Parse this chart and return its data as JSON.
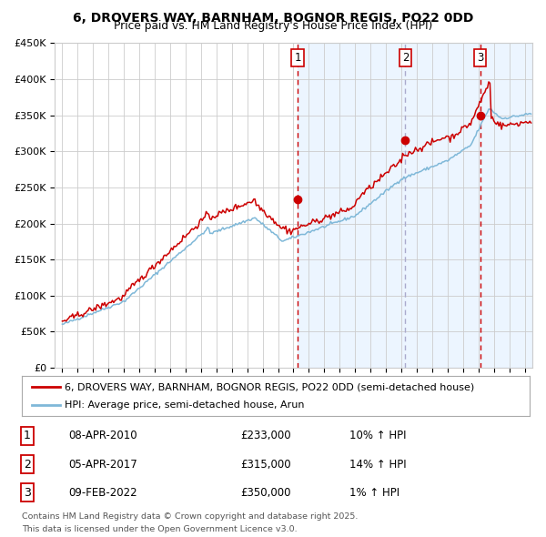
{
  "title": "6, DROVERS WAY, BARNHAM, BOGNOR REGIS, PO22 0DD",
  "subtitle": "Price paid vs. HM Land Registry's House Price Index (HPI)",
  "legend_line1": "6, DROVERS WAY, BARNHAM, BOGNOR REGIS, PO22 0DD (semi-detached house)",
  "legend_line2": "HPI: Average price, semi-detached house, Arun",
  "footer1": "Contains HM Land Registry data © Crown copyright and database right 2025.",
  "footer2": "This data is licensed under the Open Government Licence v3.0.",
  "sales": [
    {
      "num": 1,
      "date": "08-APR-2010",
      "price": 233000,
      "pct": "10%",
      "dir": "↑",
      "x": 2010.27
    },
    {
      "num": 2,
      "date": "05-APR-2017",
      "price": 315000,
      "pct": "14%",
      "dir": "↑",
      "x": 2017.26
    },
    {
      "num": 3,
      "date": "09-FEB-2022",
      "price": 350000,
      "pct": "1%",
      "dir": "↑",
      "x": 2022.11
    }
  ],
  "hpi_color": "#7fb8d8",
  "price_color": "#cc0000",
  "sale_dot_color": "#cc0000",
  "shade_color": "#ddeeff",
  "vline_red_color": "#cc0000",
  "vline_grey_color": "#aaaacc",
  "background_color": "#ffffff",
  "grid_color": "#cccccc",
  "ylim": [
    0,
    450000
  ],
  "yticks": [
    0,
    50000,
    100000,
    150000,
    200000,
    250000,
    300000,
    350000,
    400000,
    450000
  ],
  "xlim": [
    1994.5,
    2025.5
  ]
}
